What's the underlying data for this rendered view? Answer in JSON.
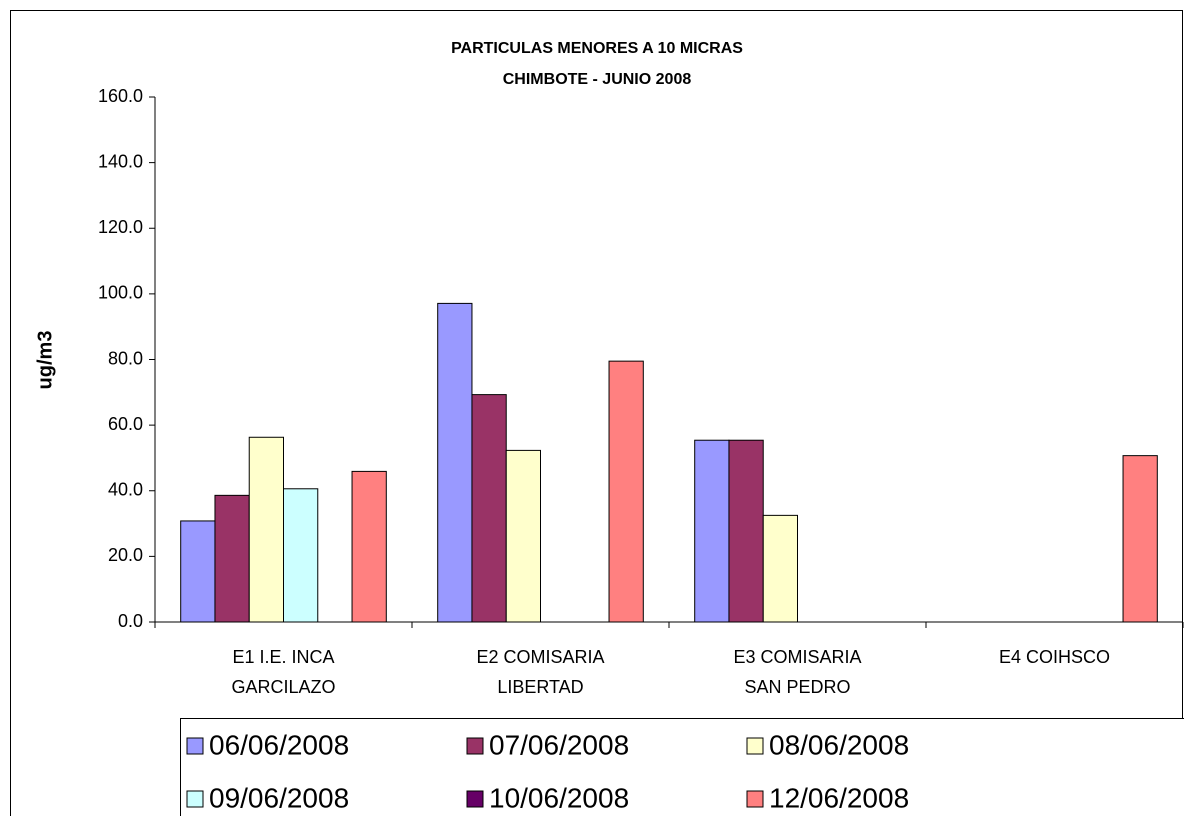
{
  "chart_data": {
    "type": "bar",
    "title": "PARTICULAS MENORES A 10 MICRAS",
    "subtitle": "CHIMBOTE - JUNIO 2008",
    "y_label": "ug/m3",
    "categories": [
      "E1 I.E. INCA\nGARCILAZO",
      "E2 COMISARIA\nLIBERTAD",
      "E3 COMISARIA\nSAN PEDRO",
      "E4 COIHSCO"
    ],
    "series": [
      {
        "name": "06/06/2008",
        "color": "#9999ff",
        "values": [
          30.8,
          97.1,
          55.4,
          null
        ]
      },
      {
        "name": "07/06/2008",
        "color": "#993366",
        "values": [
          38.6,
          69.3,
          55.4,
          null
        ]
      },
      {
        "name": "08/06/2008",
        "color": "#ffffcc",
        "values": [
          56.3,
          52.3,
          32.5,
          null
        ]
      },
      {
        "name": "09/06/2008",
        "color": "#ccffff",
        "values": [
          40.6,
          null,
          null,
          null
        ]
      },
      {
        "name": "10/06/2008",
        "color": "#660066",
        "values": [
          null,
          null,
          null,
          null
        ]
      },
      {
        "name": "12/06/2008",
        "color": "#ff8080",
        "values": [
          45.9,
          79.5,
          null,
          50.7
        ]
      }
    ],
    "ylim": [
      0,
      160
    ],
    "yticks": [
      {
        "value": 0,
        "label": "0.0"
      },
      {
        "value": 20,
        "label": "20.0"
      },
      {
        "value": 40,
        "label": "40.0"
      },
      {
        "value": 60,
        "label": "60.0"
      },
      {
        "value": 80,
        "label": "80.0"
      },
      {
        "value": 100,
        "label": "100.0"
      },
      {
        "value": 120,
        "label": "120.0"
      },
      {
        "value": 140,
        "label": "140.0"
      },
      {
        "value": 160,
        "label": "160.0"
      }
    ],
    "grid": false,
    "legend": "bottom"
  }
}
